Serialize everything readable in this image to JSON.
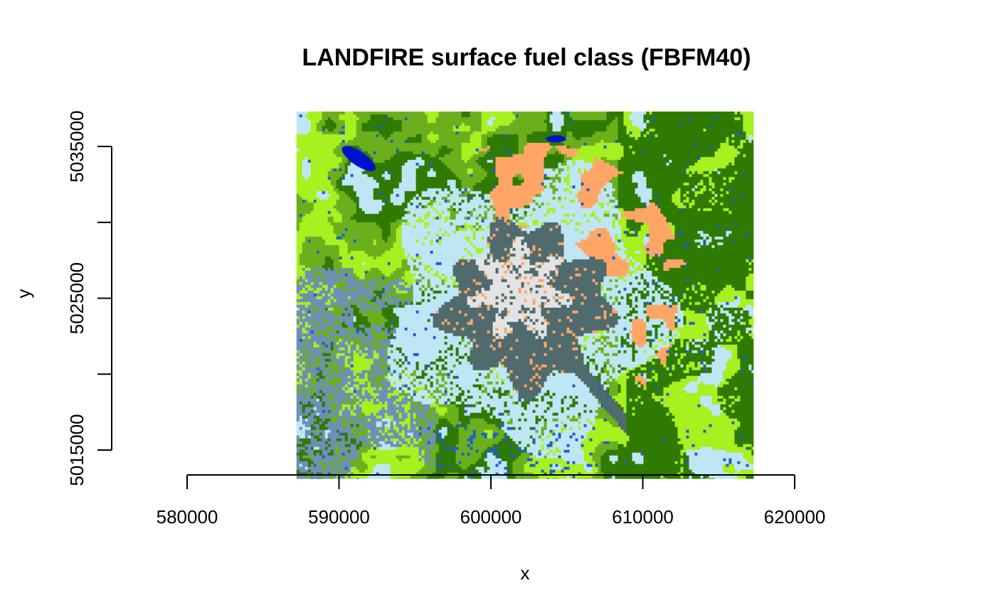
{
  "chart_data": {
    "type": "heatmap",
    "title": "LANDFIRE surface fuel class (FBFM40)",
    "xlabel": "x",
    "ylabel": "y",
    "xlim": [
      575000,
      620000
    ],
    "ylim": [
      5013000,
      5039000
    ],
    "x_ticks": [
      {
        "value": 580000,
        "label": "580000"
      },
      {
        "value": 590000,
        "label": "590000"
      },
      {
        "value": 600000,
        "label": "600000"
      },
      {
        "value": 610000,
        "label": "610000"
      },
      {
        "value": 620000,
        "label": "620000"
      }
    ],
    "y_ticks": [
      {
        "value": 5015000,
        "label": "5015000"
      },
      {
        "value": 5020000,
        "label": ""
      },
      {
        "value": 5025000,
        "label": "5025000"
      },
      {
        "value": 5030000,
        "label": ""
      },
      {
        "value": 5035000,
        "label": "5035000"
      }
    ],
    "raster_extent": {
      "xmin": 587200,
      "xmax": 617300,
      "ymin": 5013100,
      "ymax": 5037300
    },
    "palette": {
      "sparse": "#bfe6f5",
      "light_green": "#a8f020",
      "olive_green": "#6bb01c",
      "dark_green": "#2f7a00",
      "slate": "#4f6b6e",
      "blue_grey": "#6f8fb8",
      "orange": "#ffa666",
      "snow": "#e3e3e3",
      "water_blue": "#0011cc",
      "stream_blue": "#1c5fcf"
    },
    "features": [
      {
        "name": "summit-snow",
        "center": [
          601800,
          5025600
        ]
      },
      {
        "name": "crater-rock",
        "center": [
          602300,
          5024600
        ]
      },
      {
        "name": "lake",
        "center": [
          591300,
          5034200
        ]
      },
      {
        "name": "lake",
        "center": [
          604300,
          5035500
        ]
      }
    ]
  }
}
